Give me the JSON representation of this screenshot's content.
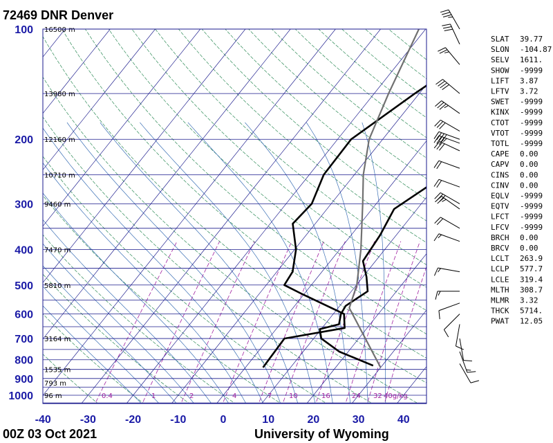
{
  "header": {
    "title": "72469 DNR Denver",
    "date": "00Z 03 Oct 2021",
    "source": "University of Wyoming"
  },
  "chart_data": {
    "type": "skew-t",
    "pressure_levels": [
      100,
      200,
      300,
      400,
      500,
      600,
      700,
      800,
      900,
      1000
    ],
    "temperature_ticks": [
      -40,
      -30,
      -20,
      -10,
      0,
      10,
      20,
      30,
      40
    ],
    "height_labels": [
      {
        "p": 100,
        "text": "16500 m"
      },
      {
        "p": 150,
        "text": "13980 m"
      },
      {
        "p": 200,
        "text": "12160 m"
      },
      {
        "p": 250,
        "text": "10710 m"
      },
      {
        "p": 300,
        "text": "9460 m"
      },
      {
        "p": 400,
        "text": "7470 m"
      },
      {
        "p": 500,
        "text": "5810 m"
      },
      {
        "p": 700,
        "text": "3164 m"
      },
      {
        "p": 850,
        "text": "1535 m"
      },
      {
        "p": 925,
        "text": "793 m"
      },
      {
        "p": 1000,
        "text": "96 m"
      }
    ],
    "mixing_ratio_labels": [
      "0.4",
      "1",
      "2",
      "4",
      "7",
      "10",
      "16",
      "24",
      "32",
      "40g/kg"
    ],
    "series": [
      {
        "key": "temperature",
        "points": [
          [
            830,
            28.0
          ],
          [
            760,
            18.0
          ],
          [
            700,
            11.7
          ],
          [
            660,
            9.7
          ],
          [
            640,
            13.1
          ],
          [
            600,
            11.7
          ],
          [
            570,
            11.3
          ],
          [
            520,
            13.6
          ],
          [
            475,
            10.8
          ],
          [
            430,
            7.2
          ],
          [
            365,
            6.4
          ],
          [
            310,
            4.9
          ],
          [
            260,
            9.2
          ],
          [
            205,
            12.7
          ],
          [
            160,
            18.4
          ],
          [
            130,
            22.5
          ],
          [
            100,
            24.5
          ]
        ]
      },
      {
        "key": "dewpoint",
        "points": [
          [
            840,
            3.9
          ],
          [
            700,
            3.5
          ],
          [
            655,
            15.0
          ],
          [
            600,
            12.4
          ],
          [
            530,
            -0.3
          ],
          [
            500,
            -6.0
          ],
          [
            460,
            -6.5
          ],
          [
            400,
            -9.7
          ],
          [
            340,
            -15.0
          ],
          [
            300,
            -14.3
          ],
          [
            250,
            -16.8
          ],
          [
            200,
            -17.0
          ],
          [
            150,
            -11.0
          ],
          [
            130,
            -7.6
          ],
          [
            100,
            -2.0
          ]
        ]
      },
      {
        "key": "parcel",
        "points": [
          [
            840,
            30.0
          ],
          [
            577.7,
            12.5
          ],
          [
            500,
            10.1
          ],
          [
            400,
            4.7
          ],
          [
            300,
            -3.0
          ],
          [
            250,
            -8.0
          ],
          [
            200,
            -13.0
          ],
          [
            150,
            -16.8
          ],
          [
            100,
            -21.5
          ]
        ]
      }
    ],
    "xlim": [
      -40,
      45
    ],
    "ylim": [
      1050,
      100
    ]
  },
  "wind_barbs": [
    {
      "p": 100,
      "dir": 330,
      "kt": 35
    },
    {
      "p": 110,
      "dir": 335,
      "kt": 30
    },
    {
      "p": 125,
      "dir": 320,
      "kt": 25
    },
    {
      "p": 150,
      "dir": 310,
      "kt": 40
    },
    {
      "p": 170,
      "dir": 305,
      "kt": 35
    },
    {
      "p": 190,
      "dir": 300,
      "kt": 30
    },
    {
      "p": 200,
      "dir": 290,
      "kt": 40
    },
    {
      "p": 205,
      "dir": 290,
      "kt": 35
    },
    {
      "p": 215,
      "dir": 295,
      "kt": 30
    },
    {
      "p": 240,
      "dir": 290,
      "kt": 20
    },
    {
      "p": 270,
      "dir": 290,
      "kt": 20
    },
    {
      "p": 300,
      "dir": 300,
      "kt": 30
    },
    {
      "p": 310,
      "dir": 305,
      "kt": 25
    },
    {
      "p": 350,
      "dir": 300,
      "kt": 20
    },
    {
      "p": 380,
      "dir": 290,
      "kt": 15
    },
    {
      "p": 460,
      "dir": 280,
      "kt": 15
    },
    {
      "p": 520,
      "dir": 270,
      "kt": 15
    },
    {
      "p": 560,
      "dir": 250,
      "kt": 10
    },
    {
      "p": 600,
      "dir": 225,
      "kt": 10
    },
    {
      "p": 640,
      "dir": 190,
      "kt": 10
    },
    {
      "p": 700,
      "dir": 170,
      "kt": 10
    },
    {
      "p": 760,
      "dir": 160,
      "kt": 15
    },
    {
      "p": 820,
      "dir": 150,
      "kt": 10
    }
  ],
  "indices": [
    {
      "name": "SLAT",
      "value": "39.77"
    },
    {
      "name": "SLON",
      "value": "-104.87"
    },
    {
      "name": "SELV",
      "value": "1611."
    },
    {
      "name": "SHOW",
      "value": "-9999"
    },
    {
      "name": "LIFT",
      "value": "3.87"
    },
    {
      "name": "LFTV",
      "value": "3.72"
    },
    {
      "name": "SWET",
      "value": "-9999"
    },
    {
      "name": "KINX",
      "value": "-9999"
    },
    {
      "name": "CTOT",
      "value": "-9999"
    },
    {
      "name": "VTOT",
      "value": "-9999"
    },
    {
      "name": "TOTL",
      "value": "-9999"
    },
    {
      "name": "CAPE",
      "value": "0.00"
    },
    {
      "name": "CAPV",
      "value": "0.00"
    },
    {
      "name": "CINS",
      "value": "0.00"
    },
    {
      "name": "CINV",
      "value": "0.00"
    },
    {
      "name": "EQLV",
      "value": "-9999"
    },
    {
      "name": "EQTV",
      "value": "-9999"
    },
    {
      "name": "LFCT",
      "value": "-9999"
    },
    {
      "name": "LFCV",
      "value": "-9999"
    },
    {
      "name": "BRCH",
      "value": "0.00"
    },
    {
      "name": "BRCV",
      "value": "0.00"
    },
    {
      "name": "LCLT",
      "value": "263.9"
    },
    {
      "name": "LCLP",
      "value": "577.7"
    },
    {
      "name": "LCLE",
      "value": "319.4"
    },
    {
      "name": "MLTH",
      "value": "308.7"
    },
    {
      "name": "MLMR",
      "value": "3.32"
    },
    {
      "name": "THCK",
      "value": "5714."
    },
    {
      "name": "PWAT",
      "value": "12.05"
    }
  ],
  "colors": {
    "isobar": "#1a1a8c",
    "isotherm": "#1a1a8c",
    "dry_adiabat": "#2e8b57",
    "moist_adiabat": "#3a6fb5",
    "mixing_ratio": "#a020a0",
    "sounding": "#000000",
    "parcel": "#707070",
    "axis_label": "#1a1aa6"
  }
}
